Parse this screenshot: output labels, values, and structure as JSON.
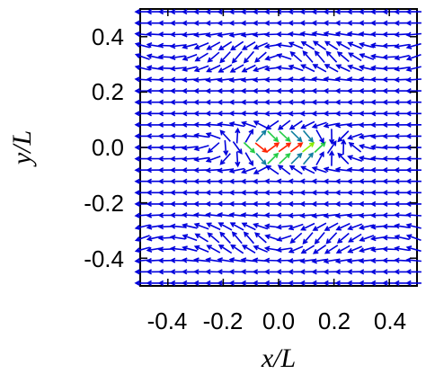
{
  "chart_data": {
    "type": "quiver",
    "xlabel": "x/L",
    "ylabel": "y/L",
    "xlim": [
      -0.5,
      0.5
    ],
    "ylim": [
      -0.5,
      0.5
    ],
    "x_ticks": [
      -0.4,
      -0.2,
      0.0,
      0.2,
      0.4
    ],
    "x_tick_labels": [
      "-0.4",
      "-0.2",
      "0.0",
      "0.2",
      "0.4"
    ],
    "y_ticks": [
      0.4,
      0.2,
      0.0,
      -0.2,
      -0.4
    ],
    "y_tick_labels": [
      "0.4",
      "0.2",
      "0.0",
      "-0.2",
      "-0.4"
    ],
    "grid": false,
    "colormap": [
      "#0000dd",
      "#0f7fa0",
      "#22cc44",
      "#88ee00",
      "#ff2200"
    ],
    "field": {
      "grid_x_range": [
        -0.49,
        0.49
      ],
      "grid_y_range": [
        -0.49,
        0.49
      ],
      "grid_nx": 24,
      "grid_ny": 25,
      "description": "Background flow leftward (u<0) with near-boundary rightward perturbations; a strong dipole-like jet near the center (x≈0.0–0.1, y≈0) with arrows pointing right and colors from blue to red."
    }
  }
}
